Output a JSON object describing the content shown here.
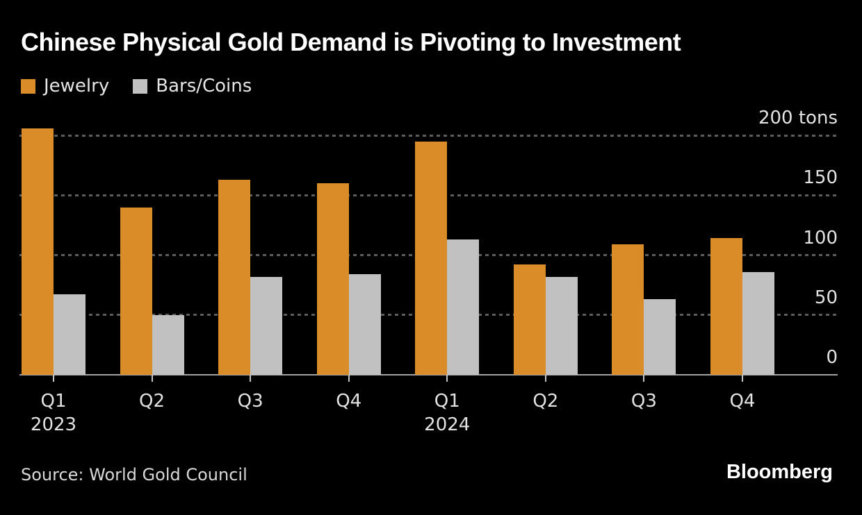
{
  "header": {
    "title": "Chinese Physical Gold Demand is Pivoting to Investment"
  },
  "legend": [
    {
      "label": "Jewelry",
      "color": "#d98c28"
    },
    {
      "label": "Bars/Coins",
      "color": "#c1c1c1"
    }
  ],
  "chart_data": {
    "type": "bar",
    "categories": [
      "Q1 2023",
      "Q2 2023",
      "Q3 2023",
      "Q4 2023",
      "Q1 2024",
      "Q2 2024",
      "Q3 2024",
      "Q4 2024"
    ],
    "series": [
      {
        "name": "Jewelry",
        "color": "#d98c28",
        "values": [
          206,
          140,
          163,
          160,
          195,
          92,
          109,
          114
        ]
      },
      {
        "name": "Bars/Coins",
        "color": "#c1c1c1",
        "values": [
          67,
          50,
          82,
          84,
          113,
          82,
          63,
          86
        ]
      }
    ],
    "title": "Chinese Physical Gold Demand is Pivoting to Investment",
    "xlabel": "",
    "ylabel": "tons",
    "ylim": [
      0,
      200
    ],
    "y_ticks": [
      {
        "value": 200,
        "label": "200 tons"
      },
      {
        "value": 150,
        "label": "150"
      },
      {
        "value": 100,
        "label": "100"
      },
      {
        "value": 50,
        "label": "50"
      },
      {
        "value": 0,
        "label": "0"
      }
    ],
    "x_ticks": [
      {
        "label": "Q1",
        "year": "2023"
      },
      {
        "label": "Q2"
      },
      {
        "label": "Q3"
      },
      {
        "label": "Q4"
      },
      {
        "label": "Q1",
        "year": "2024"
      },
      {
        "label": "Q2"
      },
      {
        "label": "Q3"
      },
      {
        "label": "Q4"
      }
    ],
    "grid": "horizontal-dashed",
    "legend_position": "top-left"
  },
  "footer": {
    "source": "Source: World Gold Council",
    "brand": "Bloomberg"
  },
  "colors": {
    "background": "#000000",
    "jewelry": "#d98c28",
    "bars_coins": "#c1c1c1",
    "gridline": "#5c5c5c",
    "axis_line": "#a3a3a3",
    "tick": "#c6c6c6",
    "label_text": "#e3e3e3",
    "title_text": "#ffffff"
  }
}
